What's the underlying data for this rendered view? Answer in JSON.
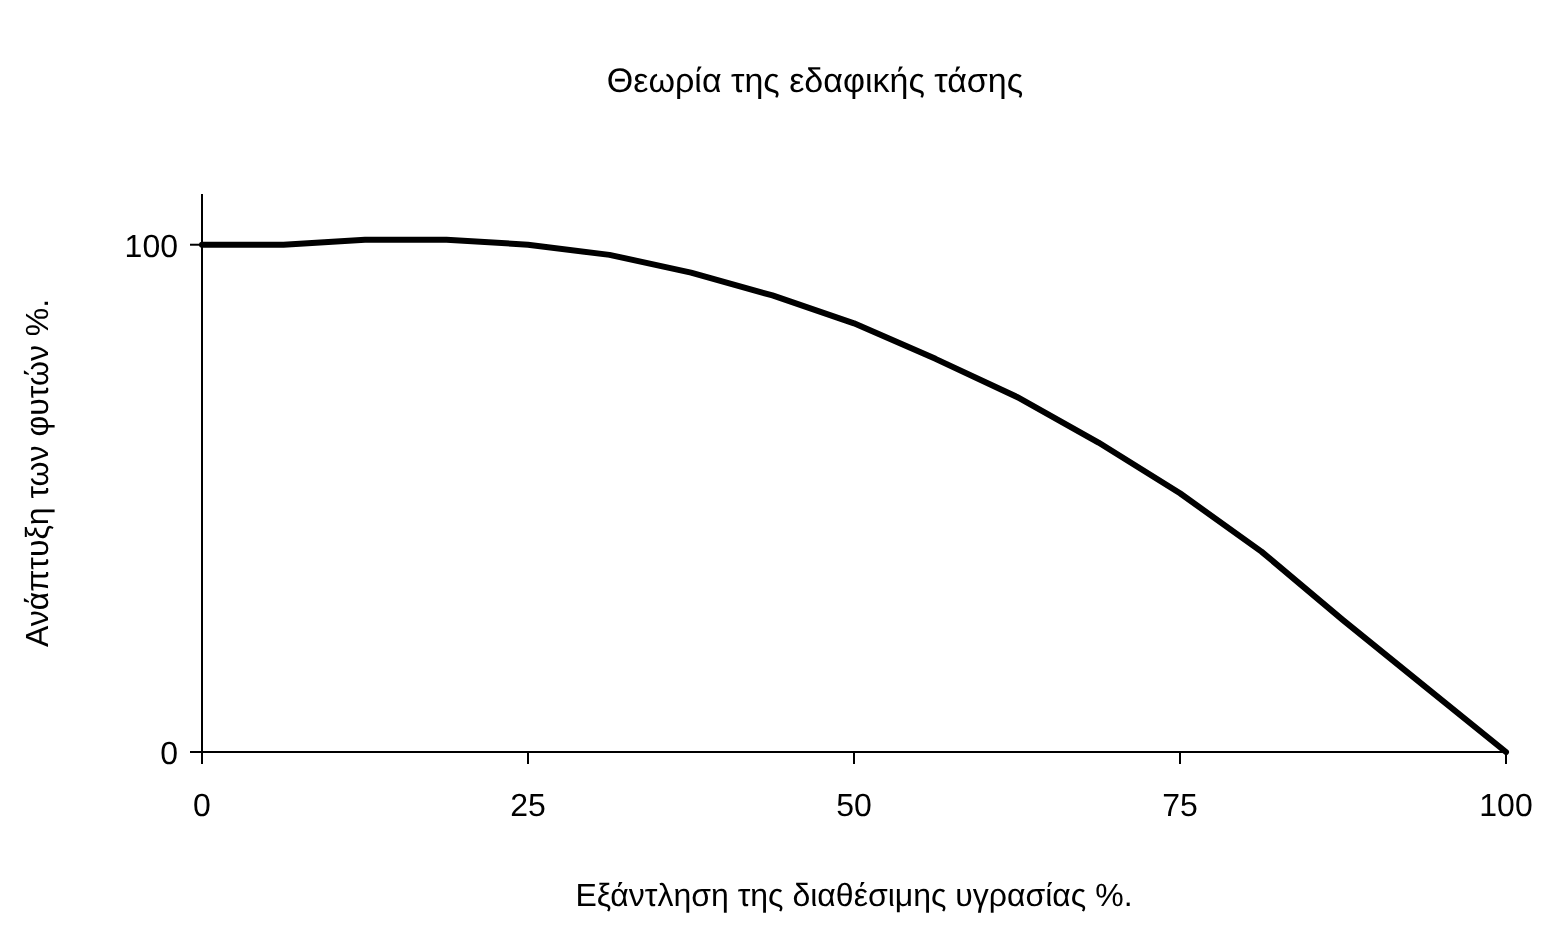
{
  "chart_data": {
    "type": "line",
    "title": "Θεωρία της εδαφικής τάσης",
    "xlabel": "Εξάντληση της διαθέσιμης υγρασίας %.",
    "ylabel": "Ανάπτυξη των φυτών %.",
    "x": [
      0,
      6.25,
      12.5,
      18.75,
      25,
      31.25,
      37.5,
      43.75,
      50,
      56.25,
      62.5,
      68.75,
      75,
      81.25,
      87.5,
      93.75,
      100
    ],
    "series": [
      {
        "color": "#000000",
        "values": [
          100,
          100,
          101,
          101,
          100,
          98,
          94.5,
          90,
          84.5,
          77.5,
          70,
          61,
          51,
          39.5,
          26,
          13,
          0
        ]
      }
    ],
    "xlim": [
      0,
      100
    ],
    "xticks": [
      0,
      25,
      50,
      75,
      100
    ],
    "ylim": [
      0,
      110
    ],
    "yticks": [
      0,
      100
    ],
    "grid": false,
    "marker": "none",
    "line_style": "solid"
  }
}
